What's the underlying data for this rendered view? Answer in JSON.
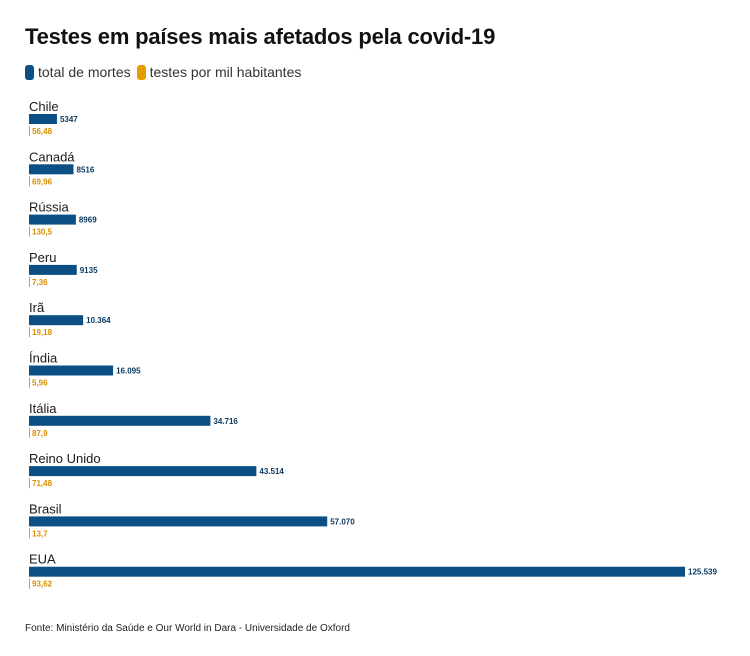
{
  "title": "Testes em países mais afetados pela covid-19",
  "legend": [
    {
      "label": "total de mortes",
      "color": "#0b4f84"
    },
    {
      "label": "testes por mil habitantes",
      "color": "#e69d00"
    }
  ],
  "source": "Fonte: Ministério da Saúde e Our World in Dara - Universidade de Oxford",
  "chart_data": {
    "type": "bar",
    "orientation": "horizontal",
    "title": "Testes em países mais afetados pela covid-19",
    "xlabel": "",
    "ylabel": "",
    "grid": false,
    "legend_position": "top-left",
    "categories": [
      "Chile",
      "Canadá",
      "Rússia",
      "Peru",
      "Irã",
      "Índia",
      "Itália",
      "Reino Unido",
      "Brasil",
      "EUA"
    ],
    "series": [
      {
        "name": "total de mortes",
        "color": "#0b4f84",
        "values": [
          5347,
          8516,
          8969,
          9135,
          10364,
          16095,
          34716,
          43514,
          57070,
          125539
        ],
        "labels": [
          "5347",
          "8516",
          "8969",
          "9135",
          "10.364",
          "16.095",
          "34.716",
          "43.514",
          "57.070",
          "125.539"
        ]
      },
      {
        "name": "testes por mil habitantes",
        "color": "#e69d00",
        "values": [
          56.48,
          69.96,
          130.5,
          7.36,
          19.18,
          5.96,
          87.9,
          71.48,
          13.7,
          93.62
        ],
        "labels": [
          "56,48",
          "69,96",
          "130,5",
          "7,36",
          "19,18",
          "5,96",
          "87,9",
          "71,48",
          "13,7",
          "93,62"
        ]
      }
    ],
    "xlim": [
      0,
      125539
    ]
  }
}
